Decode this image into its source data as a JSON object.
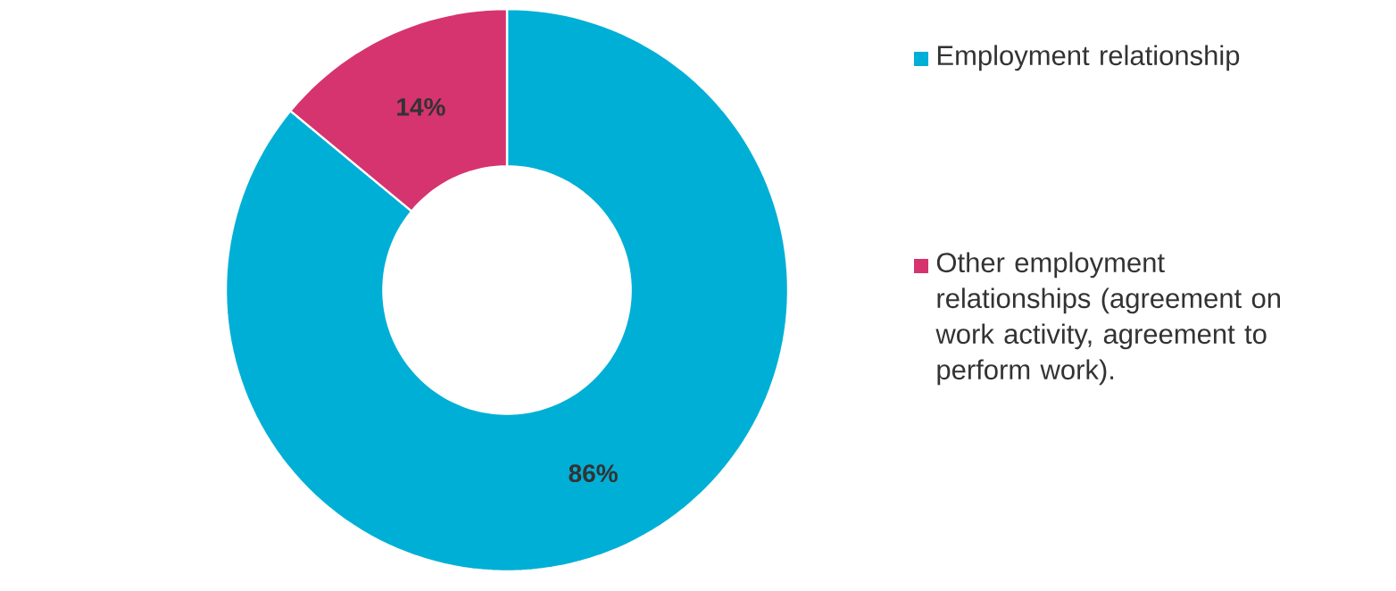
{
  "chart_data": {
    "type": "donut",
    "categories": [
      "Employment relationship",
      "Other employment relationships (agreement on work activity, agreement to perform work)."
    ],
    "values": [
      86,
      14
    ],
    "colors": [
      "#00afd6",
      "#d6346e"
    ],
    "value_labels": [
      "86%",
      "14%"
    ],
    "legend": "right"
  }
}
